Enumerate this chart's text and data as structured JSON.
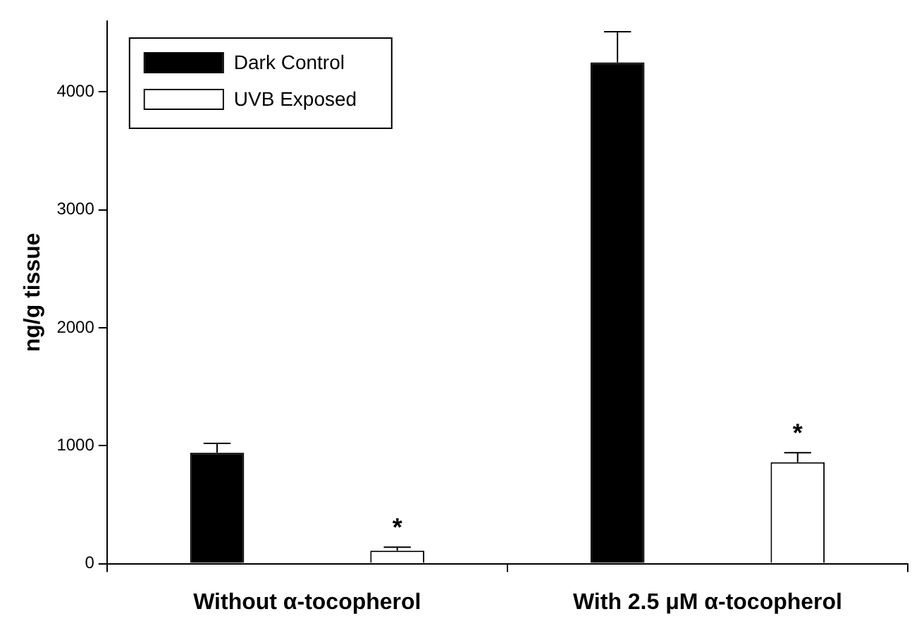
{
  "chart_data": {
    "type": "bar",
    "ylabel": "ng/g tissue",
    "categories": [
      "Without α-tocopherol",
      "With 2.5 μM α-tocopherol"
    ],
    "series": [
      {
        "name": "Dark Control",
        "color": "#000000",
        "values": [
          940,
          4250
        ],
        "errors": [
          80,
          260
        ]
      },
      {
        "name": "UVB Exposed",
        "color": "#ffffff",
        "values": [
          110,
          860
        ],
        "errors": [
          30,
          80
        ]
      }
    ],
    "ylim": [
      0,
      4600
    ],
    "yticks": [
      0,
      1000,
      2000,
      3000,
      4000
    ],
    "grid": false,
    "legend": "top left",
    "annotations": [
      "*",
      "*"
    ]
  }
}
